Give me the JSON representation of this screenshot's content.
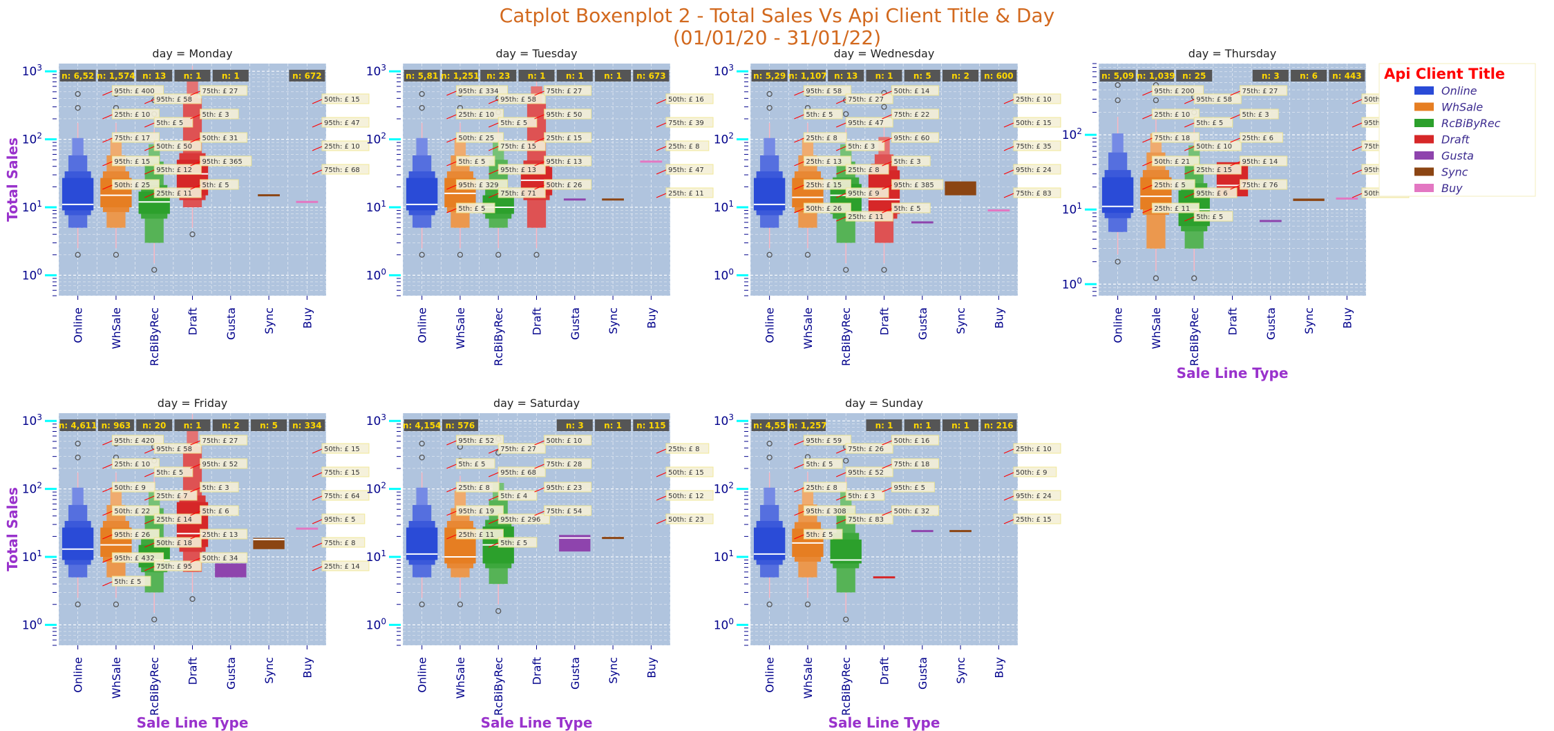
{
  "figure": {
    "title_line1": "Catplot Boxenplot 2 - Total Sales Vs Api Client Title & Day",
    "title_line2": "(01/01/20 - 31/01/22)",
    "ylabel": "Total Sales",
    "xlabel": "Sale Line Type",
    "colors": {
      "title": "#d2691e",
      "axis_label": "#9932cc",
      "tick": "#00008b",
      "plot_bg": "#b0c4de",
      "count_box": "#555555",
      "count_text": "#ffd700",
      "legend_title": "#ff0000",
      "legend_text": "#3b2a8f",
      "arrow": "#ff0000",
      "major_tick": "#00ffff"
    }
  },
  "legend": {
    "title": "Api Client Title",
    "items": [
      {
        "label": "Online",
        "color": "#2a4bd7"
      },
      {
        "label": "WhSale",
        "color": "#e67e22"
      },
      {
        "label": "RcBiByRec",
        "color": "#2ca02c"
      },
      {
        "label": "Draft",
        "color": "#d62728"
      },
      {
        "label": "Gusta",
        "color": "#8e44ad"
      },
      {
        "label": "Sync",
        "color": "#8b4513"
      },
      {
        "label": "Buy",
        "color": "#e377c2"
      }
    ]
  },
  "chart_data": [
    {
      "type": "boxen",
      "facet_title": "day = Monday",
      "yscale": "log",
      "ylim": [
        0.5,
        1300
      ],
      "yticks": [
        "10^0",
        "10^1",
        "10^2",
        "10^3"
      ],
      "categories": [
        "Online",
        "WhSale",
        "RcBiByRec",
        "Draft",
        "Gusta",
        "Sync",
        "Buy"
      ],
      "counts": [
        "n: 6,52",
        "n: 1,574",
        "n: 13",
        "n: 1",
        "n: 1",
        "",
        "n: 672"
      ],
      "boxes": [
        {
          "category": "Online",
          "p5": 5,
          "p25": 9,
          "p50": 11,
          "p75": 27,
          "p95": 58
        },
        {
          "category": "WhSale",
          "p5": 5,
          "p25": 10,
          "p50": 15,
          "p75": 27,
          "p95": 58
        },
        {
          "category": "RcBiByRec",
          "p5": 3,
          "p25": 8,
          "p50": 12,
          "p75": 17,
          "p95": 47
        },
        {
          "category": "Draft",
          "p5": 10,
          "p25": 15,
          "p50": 31,
          "p75": 50,
          "p95": 400
        },
        {
          "category": "Sync",
          "p95": 15
        },
        {
          "category": "Buy",
          "p95": 12
        }
      ],
      "annotations": [
        "95th: £ 400",
        "95th: £ 58",
        "75th: £ 27",
        "50th: £ 15",
        "25th: £ 10",
        "5th: £ 5",
        "5th: £ 3",
        "95th: £ 47",
        "75th: £ 17",
        "50th: £ 50",
        "50th: £ 31",
        "25th: £ 10",
        "95th: £ 15",
        "95th: £ 12",
        "95th: £ 365",
        "75th: £ 68",
        "50th: £ 25",
        "25th: £ 11",
        "5th: £ 5"
      ]
    },
    {
      "type": "boxen",
      "facet_title": "day = Tuesday",
      "yscale": "log",
      "ylim": [
        0.5,
        1300
      ],
      "yticks": [
        "10^0",
        "10^1",
        "10^2",
        "10^3"
      ],
      "categories": [
        "Online",
        "WhSale",
        "RcBiByRec",
        "Draft",
        "Gusta",
        "Sync",
        "Buy"
      ],
      "counts": [
        "n: 5,81",
        "n: 1,251",
        "n: 23",
        "n: 1",
        "n: 1",
        "n: 1",
        "n: 673"
      ],
      "boxes": [
        {
          "category": "Online",
          "p5": 5,
          "p25": 9,
          "p50": 11,
          "p75": 27,
          "p95": 58
        },
        {
          "category": "WhSale",
          "p5": 5,
          "p25": 10,
          "p50": 16,
          "p75": 27,
          "p95": 58
        },
        {
          "category": "RcBiByRec",
          "p5": 5,
          "p25": 8,
          "p50": 10,
          "p75": 15,
          "p95": 50
        },
        {
          "category": "Draft",
          "p5": 5,
          "p25": 15,
          "p50": 25,
          "p75": 39,
          "p95": 334
        },
        {
          "category": "Gusta",
          "p95": 13
        },
        {
          "category": "Sync",
          "p95": 13
        },
        {
          "category": "Buy",
          "p95": 47
        }
      ],
      "annotations": [
        "95th: £ 334",
        "95th: £ 58",
        "75th: £ 27",
        "50th: £ 16",
        "25th: £ 10",
        "5th: £ 5",
        "95th: £ 50",
        "75th: £ 39",
        "50th: £ 25",
        "75th: £ 15",
        "25th: £ 15",
        "25th: £ 8",
        "5th: £ 5",
        "95th: £ 13",
        "95th: £ 13",
        "95th: £ 47",
        "95th: £ 329",
        "75th: £ 71",
        "50th: £ 26",
        "25th: £ 11",
        "5th: £ 5"
      ]
    },
    {
      "type": "boxen",
      "facet_title": "day = Wednesday",
      "yscale": "log",
      "ylim": [
        0.5,
        1300
      ],
      "yticks": [
        "10^0",
        "10^1",
        "10^2",
        "10^3"
      ],
      "categories": [
        "Online",
        "WhSale",
        "RcBiByRec",
        "Draft",
        "Gusta",
        "Sync",
        "Buy"
      ],
      "counts": [
        "n: 5,29",
        "n: 1,107",
        "n: 13",
        "n: 1",
        "n: 5",
        "n: 2",
        "n: 600"
      ],
      "boxes": [
        {
          "category": "Online",
          "p5": 5,
          "p25": 9,
          "p50": 11,
          "p75": 27,
          "p95": 58
        },
        {
          "category": "WhSale",
          "p5": 5,
          "p25": 10,
          "p50": 14,
          "p75": 27,
          "p95": 58
        },
        {
          "category": "RcBiByRec",
          "p5": 3,
          "p25": 8,
          "p50": 15,
          "p75": 22,
          "p95": 47
        },
        {
          "category": "Draft",
          "p5": 3,
          "p25": 8,
          "p50": 13,
          "p75": 35,
          "p95": 60
        },
        {
          "category": "Gusta",
          "p95": 6
        },
        {
          "category": "Sync",
          "p25": 15,
          "p75": 24,
          "p95": 35
        },
        {
          "category": "Buy",
          "p95": 9
        }
      ],
      "annotations": [
        "95th: £ 58",
        "75th: £ 27",
        "50th: £ 14",
        "25th: £ 10",
        "5th: £ 5",
        "95th: £ 47",
        "75th: £ 22",
        "50th: £ 15",
        "25th: £ 8",
        "5th: £ 3",
        "95th: £ 60",
        "75th: £ 35",
        "25th: £ 13",
        "25th: £ 8",
        "5th: £ 3",
        "95th: £ 24",
        "25th: £ 15",
        "95th: £ 9",
        "95th: £ 385",
        "75th: £ 83",
        "50th: £ 26",
        "25th: £ 11",
        "5th: £ 5"
      ]
    },
    {
      "type": "boxen",
      "facet_title": "day = Thursday",
      "yscale": "log",
      "ylim": [
        0.7,
        900
      ],
      "yticks": [
        "10^0",
        "10^1",
        "10^2"
      ],
      "categories": [
        "Online",
        "WhSale",
        "RcBiByRec",
        "Draft",
        "Gusta",
        "Sync",
        "Buy"
      ],
      "counts": [
        "n: 5,09",
        "n: 1,039",
        "n: 25",
        "",
        "n: 3",
        "n: 6",
        "n: 443"
      ],
      "boxes": [
        {
          "category": "Online",
          "p5": 5,
          "p25": 9,
          "p50": 11,
          "p75": 27,
          "p95": 58
        },
        {
          "category": "WhSale",
          "p5": 3,
          "p25": 10,
          "p50": 15,
          "p75": 27,
          "p95": 58
        },
        {
          "category": "RcBiByRec",
          "p5": 3,
          "p25": 6,
          "p50": 10,
          "p75": 18,
          "p95": 40
        },
        {
          "category": "Draft",
          "p25": 15,
          "p50": 21,
          "p75": 43,
          "p95": 200
        },
        {
          "category": "Gusta",
          "p95": 7
        },
        {
          "category": "Sync",
          "p25": 13,
          "p75": 14,
          "p95": 14
        },
        {
          "category": "Buy",
          "p95": 14
        }
      ],
      "annotations": [
        "95th: £ 200",
        "95th: £ 58",
        "75th: £ 27",
        "50th: £ 15",
        "25th: £ 10",
        "5th: £ 5",
        "5th: £ 3",
        "95th: £ 40",
        "75th: £ 18",
        "50th: £ 10",
        "25th: £ 6",
        "75th: £ 43",
        "50th: £ 21",
        "25th: £ 15",
        "95th: £ 14",
        "95th: £ 7",
        "25th: £ 5",
        "95th: £ 6",
        "75th: £ 76",
        "50th: £ 32",
        "25th: £ 11",
        "5th: £ 5"
      ]
    },
    {
      "type": "boxen",
      "facet_title": "day = Friday",
      "yscale": "log",
      "ylim": [
        0.5,
        1300
      ],
      "yticks": [
        "10^0",
        "10^1",
        "10^2",
        "10^3"
      ],
      "categories": [
        "Online",
        "WhSale",
        "RcBiByRec",
        "Draft",
        "Gusta",
        "Sync",
        "Buy"
      ],
      "counts": [
        "n: 4,611",
        "n: 963",
        "n: 20",
        "n: 1",
        "n: 2",
        "n: 5",
        "n: 334"
      ],
      "boxes": [
        {
          "category": "Online",
          "p5": 5,
          "p25": 9,
          "p50": 13,
          "p75": 27,
          "p95": 58
        },
        {
          "category": "WhSale",
          "p5": 5,
          "p25": 10,
          "p50": 15,
          "p75": 27,
          "p95": 58
        },
        {
          "category": "RcBiByRec",
          "p5": 3,
          "p25": 7,
          "p50": 9,
          "p75": 15,
          "p95": 52
        },
        {
          "category": "Draft",
          "p5": 6,
          "p25": 14,
          "p50": 22,
          "p75": 64,
          "p95": 420
        },
        {
          "category": "Gusta",
          "p25": 5,
          "p75": 8,
          "p95": 5
        },
        {
          "category": "Sync",
          "p25": 13,
          "p50": 18,
          "p75": 19,
          "p95": 26
        },
        {
          "category": "Buy",
          "p5": 5,
          "p25": 7,
          "p50": 8,
          "p95": 26
        }
      ],
      "annotations": [
        "95th: £ 420",
        "95th: £ 58",
        "75th: £ 27",
        "50th: £ 15",
        "25th: £ 10",
        "5th: £ 5",
        "95th: £ 52",
        "75th: £ 15",
        "50th: £ 9",
        "25th: £ 7",
        "5th: £ 3",
        "75th: £ 64",
        "50th: £ 22",
        "25th: £ 14",
        "5th: £ 6",
        "95th: £ 5",
        "95th: £ 26",
        "50th: £ 18",
        "25th: £ 13",
        "75th: £ 8",
        "95th: £ 432",
        "75th: £ 95",
        "50th: £ 34",
        "25th: £ 14",
        "5th: £ 5"
      ]
    },
    {
      "type": "boxen",
      "facet_title": "day = Saturday",
      "yscale": "log",
      "ylim": [
        0.5,
        1300
      ],
      "yticks": [
        "10^0",
        "10^1",
        "10^2",
        "10^3"
      ],
      "categories": [
        "Online",
        "WhSale",
        "RcBiByRec",
        "Draft",
        "Gusta",
        "Sync",
        "Buy"
      ],
      "counts": [
        "n: 4,154",
        "n: 576",
        "",
        "",
        "n: 3",
        "n: 1",
        "n: 115"
      ],
      "boxes": [
        {
          "category": "Online",
          "p5": 5,
          "p25": 9,
          "p50": 11,
          "p75": 27,
          "p95": 58
        },
        {
          "category": "WhSale",
          "p5": 5,
          "p25": 8,
          "p50": 10,
          "p75": 27,
          "p95": 52
        },
        {
          "category": "RcBiByRec",
          "p5": 4,
          "p25": 8,
          "p50": 15,
          "p75": 28,
          "p95": 68
        },
        {
          "category": "Gusta",
          "p25": 12,
          "p50": 19,
          "p75": 21,
          "p95": 23
        },
        {
          "category": "Sync",
          "p95": 19
        }
      ],
      "annotations": [
        "95th: £ 52",
        "75th: £ 27",
        "50th: £ 10",
        "25th: £ 8",
        "5th: £ 5",
        "95th: £ 68",
        "75th: £ 28",
        "50th: £ 15",
        "25th: £ 8",
        "5th: £ 4",
        "95th: £ 23",
        "50th: £ 12",
        "95th: £ 19",
        "95th: £ 296",
        "75th: £ 54",
        "50th: £ 23",
        "25th: £ 11",
        "5th: £ 5"
      ]
    },
    {
      "type": "boxen",
      "facet_title": "day = Sunday",
      "yscale": "log",
      "ylim": [
        0.5,
        1300
      ],
      "yticks": [
        "10^0",
        "10^1",
        "10^2",
        "10^3"
      ],
      "categories": [
        "Online",
        "WhSale",
        "RcBiByRec",
        "Draft",
        "Gusta",
        "Sync",
        "Buy"
      ],
      "counts": [
        "n: 4,55",
        "n: 1,257",
        "",
        "n: 1",
        "n: 1",
        "n: 1",
        "n: 216"
      ],
      "boxes": [
        {
          "category": "Online",
          "p5": 5,
          "p25": 9,
          "p50": 11,
          "p75": 27,
          "p95": 58
        },
        {
          "category": "WhSale",
          "p5": 5,
          "p25": 10,
          "p50": 16,
          "p75": 26,
          "p95": 59
        },
        {
          "category": "RcBiByRec",
          "p5": 3,
          "p25": 8,
          "p50": 9,
          "p75": 18,
          "p95": 52
        },
        {
          "category": "Draft",
          "p95": 5
        },
        {
          "category": "Gusta",
          "p95": 24
        },
        {
          "category": "Sync",
          "p95": 24
        }
      ],
      "annotations": [
        "95th: £ 59",
        "75th: £ 26",
        "50th: £ 16",
        "25th: £ 10",
        "5th: £ 5",
        "95th: £ 52",
        "75th: £ 18",
        "50th: £ 9",
        "25th: £ 8",
        "5th: £ 3",
        "95th: £ 5",
        "95th: £ 24",
        "95th: £ 308",
        "75th: £ 83",
        "50th: £ 32",
        "25th: £ 15",
        "5th: £ 5"
      ]
    }
  ]
}
